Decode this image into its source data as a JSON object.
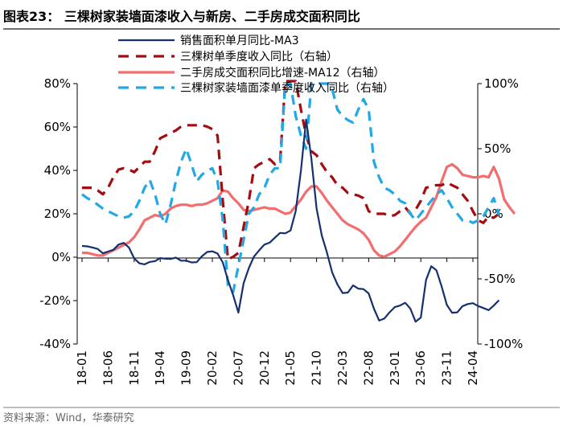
{
  "chart_data": {
    "type": "line",
    "title": "图表23： 三棵树家装墙面漆收入与新房、二手房成交面积同比",
    "source": "资料来源：Wind，华泰研究",
    "x_labels": [
      "18-01",
      "18-06",
      "18-11",
      "19-04",
      "19-09",
      "20-02",
      "20-07",
      "20-12",
      "21-05",
      "21-10",
      "22-03",
      "22-08",
      "23-01",
      "23-06",
      "23-11",
      "24-04"
    ],
    "y_left": {
      "min": -40,
      "max": 80,
      "ticks": [
        "80%",
        "60%",
        "40%",
        "20%",
        "0%",
        "-20%",
        "-40%"
      ]
    },
    "y_right": {
      "min": -100,
      "max": 100,
      "ticks": [
        "100%",
        "50%",
        "0%",
        "-50%",
        "-100%"
      ]
    },
    "colors": {
      "navy": "#15306E",
      "darkred": "#A40C10",
      "salmon": "#F26D6D",
      "skyblue": "#22A8E6"
    },
    "series": [
      {
        "name": "销售面积单月同比-MA3",
        "axis": "left",
        "style": "solid-thin",
        "color": "#15306E",
        "values": [
          5.2,
          5.0,
          4.5,
          3.8,
          1.8,
          2.6,
          3.4,
          5.8,
          6.6,
          4.5,
          -0.5,
          -2.8,
          -3.3,
          -2.2,
          -1.8,
          -0.4,
          -0.7,
          -0.8,
          -0.2,
          -1.6,
          -1.6,
          -2.4,
          -2.3,
          0.4,
          2.4,
          2.7,
          1.7,
          -2.4,
          -10.5,
          -17.5,
          -25.5,
          -12.0,
          -5.0,
          0.3,
          3.2,
          5.8,
          6.7,
          9.0,
          11.2,
          11.0,
          12.3,
          21.3,
          40.0,
          63.5,
          45.5,
          22.5,
          10.0,
          2.0,
          -7.0,
          -12.5,
          -16.5,
          -16.3,
          -13.0,
          -14.5,
          -14.7,
          -16.7,
          -23.7,
          -29.2,
          -28.3,
          -25.4,
          -23.0,
          -22.3,
          -21.0,
          -23.7,
          -29.7,
          -27.8,
          -10.5,
          -4.2,
          -6.0,
          -13.5,
          -22.0,
          -25.6,
          -25.4,
          -22.6,
          -21.6,
          -21.2,
          -22.5,
          -23.4,
          -24.4,
          -22.3,
          -19.8
        ]
      },
      {
        "name": "三棵树单季度收入同比（右轴）",
        "axis": "right",
        "style": "dashed-thick",
        "color": "#A40C10",
        "values": [
          20,
          20,
          20,
          18,
          15,
          20,
          28,
          34,
          35,
          34,
          32,
          36,
          40,
          40,
          48,
          58,
          60,
          62,
          64,
          67,
          68,
          68,
          68,
          68,
          67,
          65,
          60,
          10,
          -35,
          -33,
          -30,
          -10,
          10,
          35,
          38,
          40,
          42,
          38,
          40,
          110,
          110,
          110,
          80,
          60,
          48,
          45,
          38,
          32,
          28,
          22,
          20,
          16,
          15,
          14,
          12,
          2,
          0,
          0,
          0,
          -2,
          -1,
          2,
          5,
          0,
          3,
          10,
          20,
          21,
          22,
          22,
          24,
          22,
          20,
          15,
          10,
          2,
          -5,
          -7,
          -2,
          -3,
          0
        ]
      },
      {
        "name": "二手房成交面积同比增速-MA12（右轴）",
        "axis": "right",
        "style": "solid-thick",
        "color": "#F26D6D",
        "values": [
          -30,
          -30,
          -31,
          -32,
          -32,
          -30,
          -28,
          -26,
          -24,
          -22,
          -18,
          -12,
          -5,
          -3,
          -1,
          -2,
          0,
          4,
          6,
          7,
          7,
          6,
          7,
          7,
          8,
          10,
          12,
          18,
          17,
          12,
          8,
          3,
          2,
          3,
          4,
          5,
          4,
          4,
          2,
          0,
          1,
          6,
          11,
          17,
          21,
          21,
          16,
          10,
          5,
          0,
          -5,
          -8,
          -10,
          -12,
          -15,
          -20,
          -28,
          -32,
          -33,
          -31,
          -29,
          -25,
          -20,
          -15,
          -10,
          -6,
          -3,
          5,
          13,
          25,
          36,
          38,
          35,
          30,
          29,
          28,
          28,
          29,
          28,
          36,
          27,
          11,
          5,
          0
        ]
      },
      {
        "name": "三棵树家装墙面漆单季度收入同比（右轴）",
        "axis": "right",
        "style": "dashed-thick",
        "color": "#22A8E6",
        "values": [
          15,
          12,
          10,
          7,
          4,
          2,
          0,
          -2,
          -3,
          -2,
          2,
          10,
          20,
          26,
          15,
          0,
          -8,
          7,
          25,
          40,
          50,
          38,
          25,
          30,
          33,
          35,
          25,
          -5,
          -55,
          -60,
          -40,
          -20,
          0,
          5,
          15,
          20,
          30,
          35,
          35,
          100,
          100,
          75,
          60,
          50,
          100,
          100,
          100,
          100,
          96,
          80,
          75,
          72,
          70,
          80,
          88,
          80,
          40,
          28,
          20,
          18,
          15,
          10,
          8,
          0,
          -5,
          0,
          5,
          10,
          15,
          18,
          12,
          5,
          0,
          -5,
          -5,
          -7,
          -5,
          -2,
          5,
          12,
          -1
        ]
      }
    ]
  }
}
